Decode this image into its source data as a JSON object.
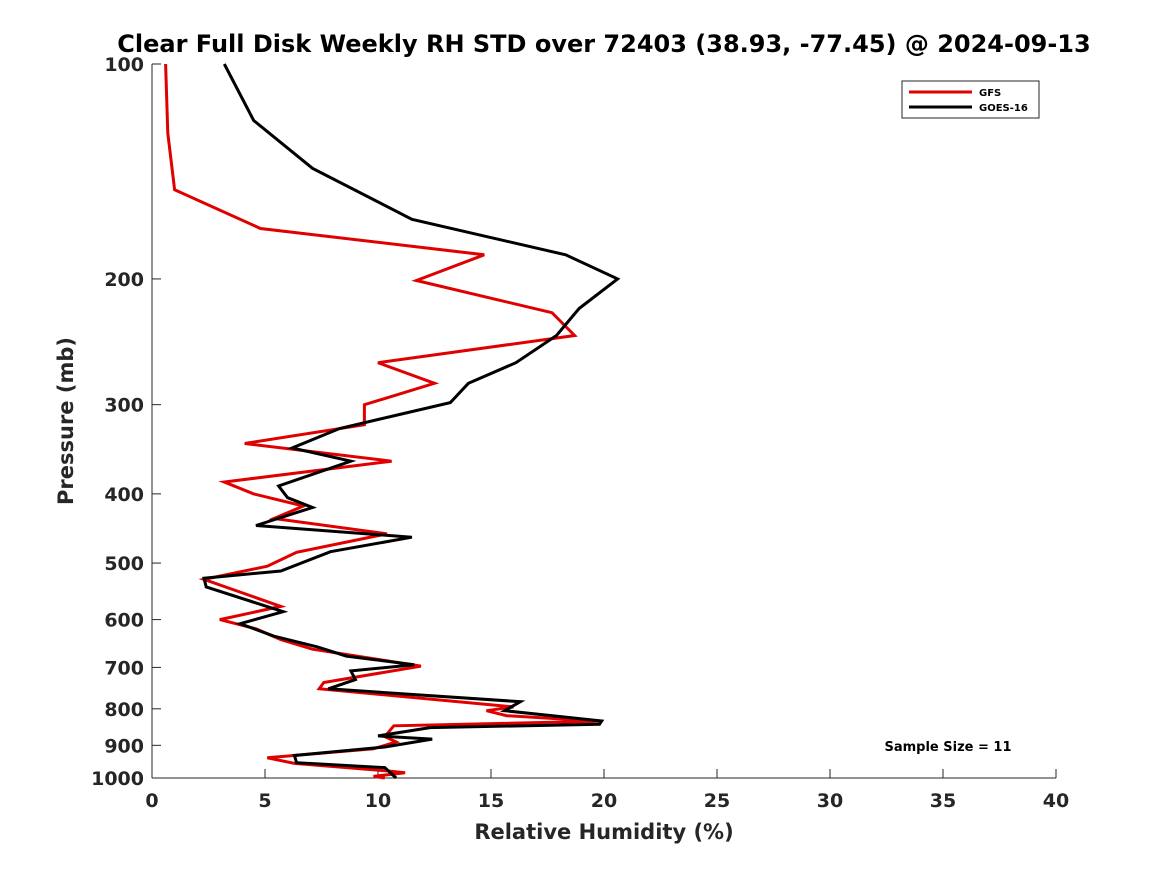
{
  "chart_data": {
    "type": "line",
    "title": "Clear Full Disk Weekly RH STD over 72403 (38.93, -77.45) @ 2024-09-13",
    "xlabel": "Relative Humidity (%)",
    "ylabel": "Pressure (mb)",
    "xlim": [
      0,
      40
    ],
    "ylim": [
      100,
      1000
    ],
    "y_scale": "log",
    "y_reversed": true,
    "xticks": [
      "0",
      "5",
      "10",
      "15",
      "20",
      "25",
      "30",
      "35",
      "40"
    ],
    "yticks": [
      "100",
      "200",
      "300",
      "400",
      "500",
      "600",
      "700",
      "800",
      "900",
      "1000"
    ],
    "grid": false,
    "legend_position": "top-right",
    "annotation": "Sample Size = 11",
    "series": [
      {
        "name": "GFS",
        "color": "#e00000",
        "points": [
          [
            0.6,
            100
          ],
          [
            0.7,
            125
          ],
          [
            1.0,
            150
          ],
          [
            4.8,
            170
          ],
          [
            14.7,
            185
          ],
          [
            11.7,
            201
          ],
          [
            17.7,
            223
          ],
          [
            18.7,
            240
          ],
          [
            10.0,
            262
          ],
          [
            12.5,
            280
          ],
          [
            9.4,
            300
          ],
          [
            9.4,
            320
          ],
          [
            4.1,
            340
          ],
          [
            10.6,
            360
          ],
          [
            3.2,
            385
          ],
          [
            4.5,
            400
          ],
          [
            6.7,
            416
          ],
          [
            5.4,
            433
          ],
          [
            10.4,
            455
          ],
          [
            6.4,
            483
          ],
          [
            5.1,
            505
          ],
          [
            2.3,
            527
          ],
          [
            5.7,
            575
          ],
          [
            3.0,
            600
          ],
          [
            4.6,
            618
          ],
          [
            5.7,
            640
          ],
          [
            7.1,
            660
          ],
          [
            11.9,
            697
          ],
          [
            7.6,
            735
          ],
          [
            7.4,
            750
          ],
          [
            16.0,
            795
          ],
          [
            14.8,
            805
          ],
          [
            15.7,
            818
          ],
          [
            19.8,
            833
          ],
          [
            10.7,
            845
          ],
          [
            10.3,
            875
          ],
          [
            10.8,
            890
          ],
          [
            9.8,
            910
          ],
          [
            5.1,
            937
          ],
          [
            6.3,
            954
          ],
          [
            10.5,
            978
          ],
          [
            11.2,
            983
          ],
          [
            9.8,
            995
          ],
          [
            10.3,
            1000
          ]
        ]
      },
      {
        "name": "GOES-16",
        "color": "#000000",
        "points": [
          [
            3.2,
            100
          ],
          [
            4.5,
            120
          ],
          [
            7.1,
            140
          ],
          [
            11.5,
            165
          ],
          [
            18.3,
            185
          ],
          [
            20.6,
            200
          ],
          [
            18.9,
            220
          ],
          [
            17.9,
            240
          ],
          [
            16.1,
            262
          ],
          [
            14.0,
            280
          ],
          [
            13.2,
            298
          ],
          [
            8.3,
            324
          ],
          [
            6.2,
            345
          ],
          [
            8.8,
            360
          ],
          [
            5.6,
            390
          ],
          [
            6.0,
            405
          ],
          [
            7.1,
            418
          ],
          [
            4.6,
            443
          ],
          [
            11.5,
            460
          ],
          [
            7.9,
            482
          ],
          [
            5.7,
            513
          ],
          [
            2.3,
            525
          ],
          [
            2.4,
            540
          ],
          [
            5.8,
            585
          ],
          [
            3.9,
            608
          ],
          [
            5.4,
            633
          ],
          [
            7.3,
            655
          ],
          [
            8.6,
            675
          ],
          [
            11.6,
            694
          ],
          [
            8.8,
            708
          ],
          [
            9.0,
            728
          ],
          [
            7.8,
            750
          ],
          [
            16.3,
            782
          ],
          [
            15.6,
            805
          ],
          [
            19.9,
            832
          ],
          [
            19.8,
            841
          ],
          [
            12.3,
            850
          ],
          [
            10.0,
            873
          ],
          [
            12.4,
            882
          ],
          [
            10.3,
            905
          ],
          [
            6.3,
            930
          ],
          [
            6.4,
            952
          ],
          [
            10.3,
            967
          ],
          [
            10.8,
            1000
          ]
        ]
      }
    ]
  }
}
